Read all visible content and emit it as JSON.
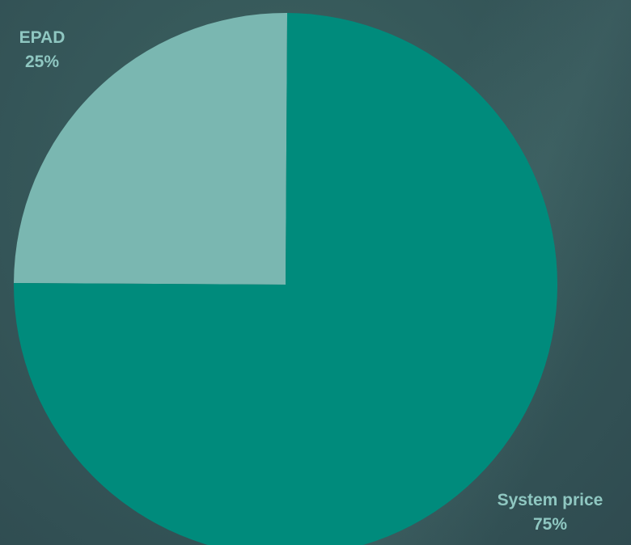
{
  "chart_data": {
    "type": "pie",
    "categories": [
      "EPAD",
      "System price"
    ],
    "values": [
      25,
      75
    ],
    "colors": [
      "#7ab7b1",
      "#008b7c"
    ],
    "data_labels": [
      {
        "name": "EPAD",
        "percent": "25%"
      },
      {
        "name": "System price",
        "percent": "75%"
      }
    ]
  }
}
